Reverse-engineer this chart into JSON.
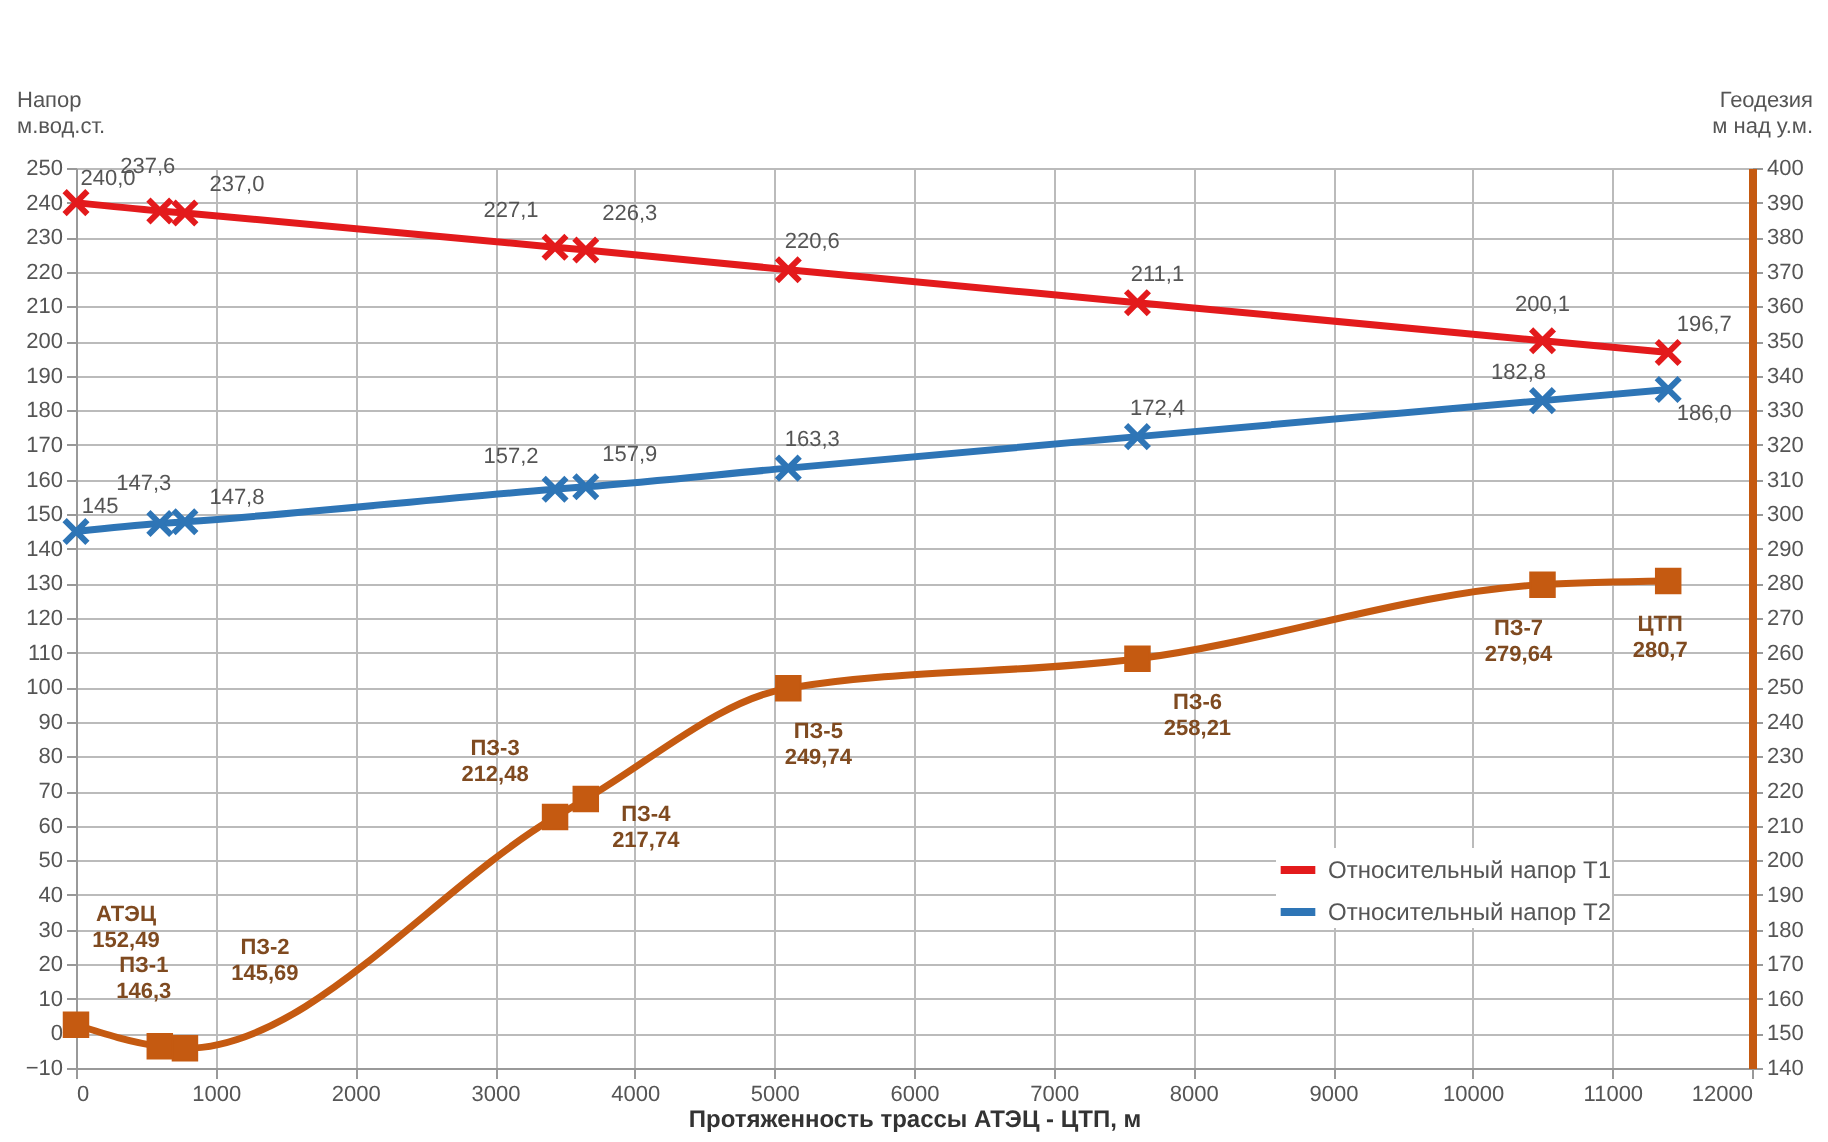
{
  "chart_data": {
    "type": "line",
    "xlabel": "Протяженность трассы АТЭЦ - ЦТП, м",
    "ylabel": "Напор м.вод.ст.",
    "y2label": "Геодезия м над у.м.",
    "x": [
      0,
      600,
      780,
      3430,
      3650,
      5100,
      7600,
      10500,
      11400
    ],
    "series": [
      {
        "name": "Относительный напор Т1",
        "color": "#e31a1c",
        "marker": "cross",
        "values": [
          240.0,
          237.6,
          237.0,
          227.1,
          226.3,
          220.6,
          211.1,
          200.1,
          196.7
        ],
        "value_labels": [
          "240,0",
          "237,6",
          "237,0",
          "227,1",
          "226,3",
          "220,6",
          "211,1",
          "200,1",
          "196,7"
        ]
      },
      {
        "name": "Относительный напор Т2",
        "color": "#2e75b6",
        "marker": "cross",
        "values": [
          145,
          147.3,
          147.8,
          157.2,
          157.9,
          163.3,
          172.4,
          182.8,
          186.0
        ],
        "value_labels": [
          "145",
          "147,3",
          "147,8",
          "157,2",
          "157,9",
          "163,3",
          "172,4",
          "182,8",
          "186,0"
        ]
      },
      {
        "color": "#c55a11",
        "marker": "square",
        "axis": "y2",
        "values": [
          152.49,
          146.3,
          145.69,
          212.48,
          217.74,
          249.74,
          258.21,
          279.64,
          280.7
        ],
        "value_labels": [
          "АТЭЦ\n152,49",
          "ПЗ-1\n146,3",
          "ПЗ-2\n145,69",
          "ПЗ-3\n212,48",
          "ПЗ-4\n217,74",
          "ПЗ-5\n249,74",
          "ПЗ-6\n258,21",
          "ПЗ-7\n279,64",
          "ЦТП\n280,7"
        ]
      }
    ],
    "xlim": [
      0,
      12000
    ],
    "xticks": [
      0,
      1000,
      2000,
      3000,
      4000,
      5000,
      6000,
      7000,
      8000,
      9000,
      10000,
      11000,
      12000
    ],
    "ylim": [
      -10,
      250
    ],
    "yticks": [
      -10,
      0,
      10,
      20,
      30,
      40,
      50,
      60,
      70,
      80,
      90,
      100,
      110,
      120,
      130,
      140,
      150,
      160,
      170,
      180,
      190,
      200,
      210,
      220,
      230,
      240,
      250
    ],
    "y2lim": [
      140,
      400
    ],
    "y2ticks": [
      140,
      150,
      160,
      170,
      180,
      190,
      200,
      210,
      220,
      230,
      240,
      250,
      260,
      270,
      280,
      290,
      300,
      310,
      320,
      330,
      340,
      350,
      360,
      370,
      380,
      390,
      400
    ],
    "grid": true,
    "legend": "bottom right"
  }
}
